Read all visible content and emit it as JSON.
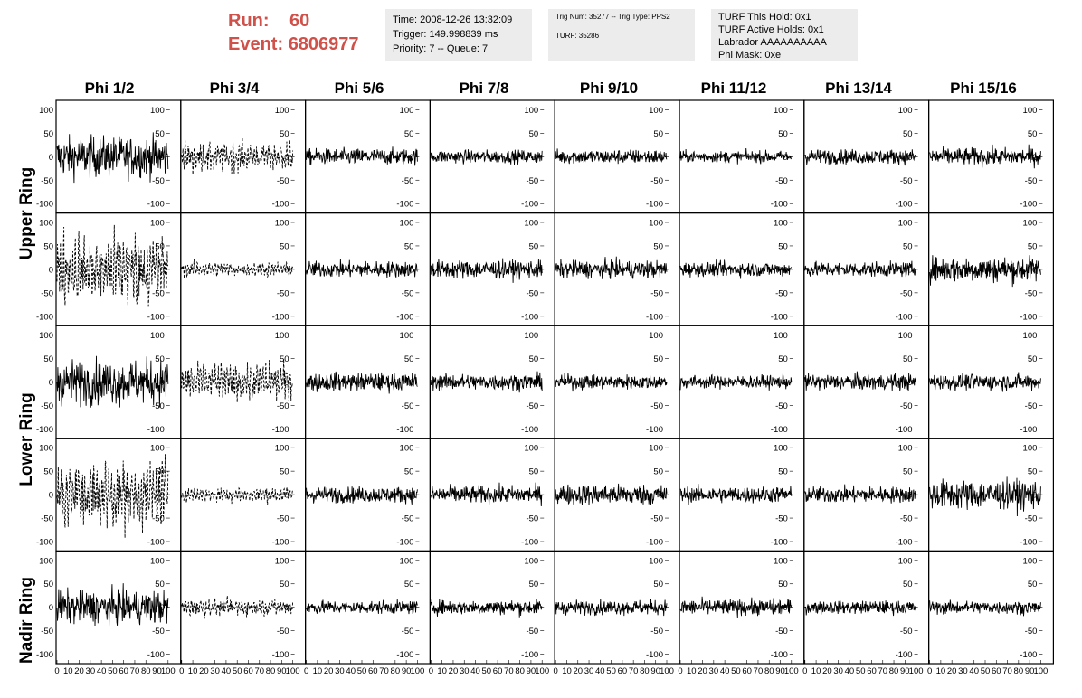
{
  "header": {
    "run_label": "Run:",
    "run_value": "60",
    "event_label": "Event:",
    "event_value": "6806977"
  },
  "info_box_1": {
    "time": "Time: 2008-12-26 13:32:09",
    "trigger": "Trigger: 149.998839 ms",
    "priority": "Priority: 7 -- Queue: 7"
  },
  "info_box_2": {
    "trig": "Trig Num: 35277 -- Trig Type: PPS2",
    "turf": "TURF: 35286"
  },
  "info_box_3": {
    "this_hold": "TURF This Hold: 0x1",
    "active_holds": "TURF Active Holds: 0x1",
    "labrador": "Labrador AAAAAAAAAA",
    "phi_mask": "Phi Mask: 0xe"
  },
  "columns": [
    "Phi 1/2",
    "Phi 3/4",
    "Phi 5/6",
    "Phi 7/8",
    "Phi 9/10",
    "Phi 11/12",
    "Phi 13/14",
    "Phi 15/16"
  ],
  "row_labels": [
    {
      "label": "Upper Ring",
      "rows": [
        0,
        1
      ]
    },
    {
      "label": "Lower Ring",
      "rows": [
        2,
        3
      ]
    },
    {
      "label": "Nadir Ring",
      "rows": [
        4,
        4
      ]
    }
  ],
  "chart_data": {
    "type": "line",
    "layout": "small multiples: 5 rows x 8 columns of waveform panels",
    "y_ticks": [
      -100,
      -50,
      0,
      50,
      100
    ],
    "ylim": [
      -120,
      120
    ],
    "x_ticks": [
      0,
      10,
      20,
      30,
      40,
      50,
      60,
      70,
      80,
      90,
      100
    ],
    "x_tick_labels": [
      "0",
      "10",
      "20",
      "30",
      "40",
      "50",
      "60",
      "70",
      "80",
      "90",
      "100"
    ],
    "xlim": [
      0,
      100
    ],
    "line_color": "#000000",
    "grid": false,
    "amplitude_by_panel": [
      [
        55,
        30,
        22,
        18,
        20,
        16,
        20,
        24
      ],
      [
        75,
        15,
        22,
        25,
        24,
        20,
        20,
        35
      ],
      [
        60,
        38,
        25,
        22,
        20,
        18,
        22,
        22
      ],
      [
        70,
        15,
        22,
        24,
        28,
        22,
        22,
        40
      ],
      [
        45,
        18,
        18,
        20,
        20,
        22,
        18,
        18
      ]
    ],
    "line_style_by_panel": [
      [
        "solid",
        "dashed",
        "solid",
        "solid",
        "solid",
        "solid",
        "solid",
        "solid"
      ],
      [
        "dashed",
        "dashed",
        "solid",
        "solid",
        "solid",
        "solid",
        "solid",
        "solid"
      ],
      [
        "solid",
        "dashed",
        "solid",
        "solid",
        "solid",
        "solid",
        "solid",
        "solid"
      ],
      [
        "dashed",
        "dashed",
        "solid",
        "solid",
        "solid",
        "solid",
        "solid",
        "solid"
      ],
      [
        "solid",
        "dashed",
        "solid",
        "solid",
        "solid",
        "solid",
        "solid",
        "solid"
      ]
    ]
  }
}
